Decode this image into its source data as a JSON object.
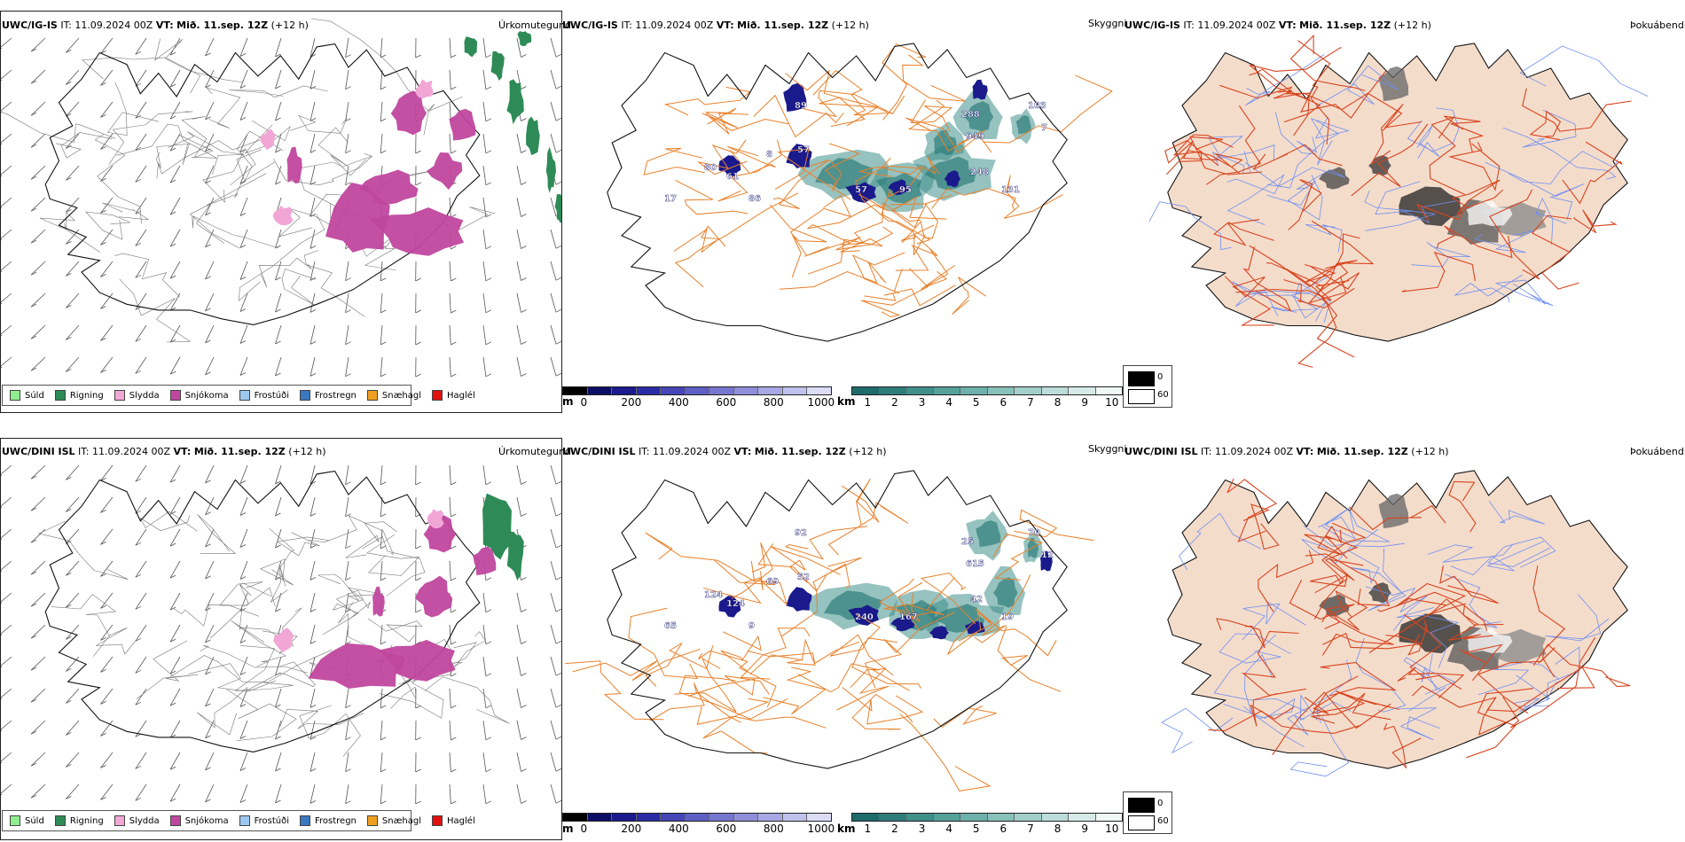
{
  "panels": [
    {
      "header_model": "UWC/IG-IS",
      "header_it": "IT: 11.09.2024 00Z",
      "header_vt_label": "VT:",
      "header_vt_value": "Mið. 11.sep. 12Z",
      "header_lead": "(+12 h)",
      "right_label": "Úrkomutegund"
    },
    {
      "header_model": "UWC/IG-IS",
      "header_it": "IT: 11.09.2024 00Z",
      "header_vt_label": "VT:",
      "header_vt_value": "Mið. 11.sep. 12Z",
      "header_lead": "(+12 h)",
      "right_label": "Skyggni"
    },
    {
      "header_model": "UWC/IG-IS",
      "header_it": "IT: 11.09.2024 00Z",
      "header_vt_label": "VT:",
      "header_vt_value": "Mið. 11.sep. 12Z",
      "header_lead": "(+12 h)",
      "right_label": "Þokuábendi"
    },
    {
      "header_model": "UWC/DINI ISL",
      "header_it": "IT: 11.09.2024 00Z",
      "header_vt_label": "VT:",
      "header_vt_value": "Mið. 11.sep. 12Z",
      "header_lead": "(+12 h)",
      "right_label": "Úrkomutegund"
    },
    {
      "header_model": "UWC/DINI ISL",
      "header_it": "IT: 11.09.2024 00Z",
      "header_vt_label": "VT:",
      "header_vt_value": "Mið. 11.sep. 12Z",
      "header_lead": "(+12 h)",
      "right_label": "Skyggni"
    },
    {
      "header_model": "UWC/DINI ISL",
      "header_it": "IT: 11.09.2024 00Z",
      "header_vt_label": "VT:",
      "header_vt_value": "Mið. 11.sep. 12Z",
      "header_lead": "(+12 h)",
      "right_label": "Þokuábendi"
    }
  ],
  "precip_legend": [
    {
      "label": "Súld",
      "color": "#90ee90"
    },
    {
      "label": "Rigning",
      "color": "#2e8b57"
    },
    {
      "label": "Slydda",
      "color": "#f2a6d6"
    },
    {
      "label": "Snjókoma",
      "color": "#c0479e"
    },
    {
      "label": "Frostúði",
      "color": "#9ec7f0"
    },
    {
      "label": "Frostregn",
      "color": "#3b78c2"
    },
    {
      "label": "Snæhagl",
      "color": "#f0a020"
    },
    {
      "label": "Haglél",
      "color": "#e01010"
    }
  ],
  "ceiling_bar": {
    "unit": "m",
    "ticks": [
      "0",
      "200",
      "400",
      "600",
      "800",
      "1000"
    ],
    "colors": [
      "#000000",
      "#0d0d66",
      "#1a1a8c",
      "#2b2ba6",
      "#4545b8",
      "#5e5ec4",
      "#7676cf",
      "#8f8fda",
      "#a8a8e4",
      "#c1c1ee",
      "#dcdcf6"
    ]
  },
  "vis_bar": {
    "unit": "km",
    "ticks": [
      "1",
      "2",
      "3",
      "4",
      "5",
      "6",
      "7",
      "8",
      "9",
      "10"
    ],
    "colors": [
      "#1e6b6b",
      "#2d7d7b",
      "#3f8f8a",
      "#56a09a",
      "#6eb0aa",
      "#88c0ba",
      "#a2cfca",
      "#bcddd9",
      "#d6ebe8",
      "#f0f8f7"
    ]
  },
  "fog_legend": [
    {
      "label": "0",
      "color": "#000000"
    },
    {
      "label": "60",
      "color": "#ffffff"
    }
  ],
  "ceiling_labels_top": [
    "80",
    "89",
    "57",
    "61",
    "17",
    "86",
    "57",
    "95",
    "8",
    "288",
    "949",
    "103",
    "7",
    "131",
    "248"
  ],
  "ceiling_labels_bottom": [
    "124",
    "92",
    "52",
    "124",
    "65",
    "9",
    "240",
    "167",
    "69",
    "25",
    "615",
    "70",
    "12",
    "19",
    "42"
  ],
  "colors": {
    "coast": "#111111",
    "roads": "#e8802a",
    "roads_red": "#d8451f",
    "land_fog": "#f4dccb",
    "rivers": "#6f8ff0",
    "snow": "#c0479e",
    "sleet": "#f2a6d6",
    "rain": "#2e8b57",
    "wind": "#555555"
  }
}
